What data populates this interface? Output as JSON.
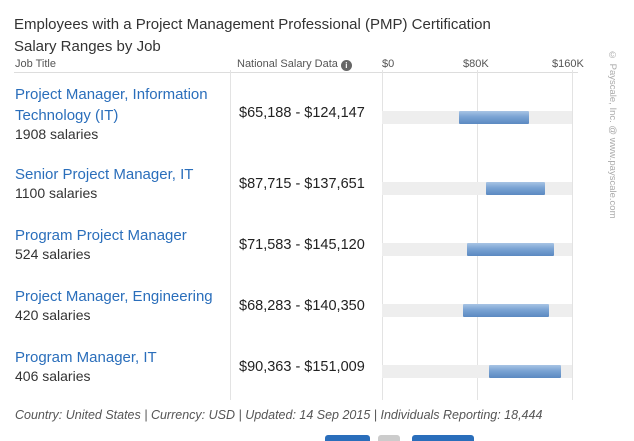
{
  "title_line1": "Employees with a Project Management Professional (PMP) Certification",
  "title_line2": "Salary Ranges by Job",
  "headers": {
    "job": "Job Title",
    "national": "National Salary Data",
    "info_icon": "i"
  },
  "footer": "Country: United States | Currency: USD | Updated: 14 Sep 2015 | Individuals Reporting: 18,444",
  "side_credit": "© Payscale, Inc. @ www.payscale.com",
  "chart_data": {
    "type": "bar",
    "orientation": "horizontal-range",
    "axis": {
      "ticks": [
        "$0",
        "$80K",
        "$160K"
      ],
      "tick_values": [
        0,
        80000,
        160000
      ],
      "xlim": [
        0,
        160000
      ]
    },
    "rows": [
      {
        "job": "Project Manager, Information Technology (IT)",
        "count": "1908 salaries",
        "range": "$65,188 - $124,147",
        "low": 65188,
        "high": 124147
      },
      {
        "job": "Senior Project Manager, IT",
        "count": "1100 salaries",
        "range": "$87,715 - $137,651",
        "low": 87715,
        "high": 137651
      },
      {
        "job": "Program Project Manager",
        "count": "524 salaries",
        "range": "$71,583 - $145,120",
        "low": 71583,
        "high": 145120
      },
      {
        "job": "Project Manager, Engineering",
        "count": "420 salaries",
        "range": "$68,283 - $140,350",
        "low": 68283,
        "high": 140350
      },
      {
        "job": "Program Manager, IT",
        "count": "406 salaries",
        "range": "$90,363 - $151,009",
        "low": 90363,
        "high": 151009
      }
    ],
    "colors": {
      "range_bar": "#6e98cc",
      "track": "#eeeeee"
    }
  }
}
